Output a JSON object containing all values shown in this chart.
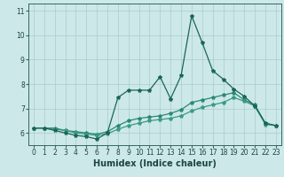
{
  "title": "",
  "xlabel": "Humidex (Indice chaleur)",
  "background_color": "#cde8e8",
  "grid_color": "#aacccc",
  "line_color1": "#1a6655",
  "line_color2": "#2a8877",
  "line_color3": "#3a9988",
  "xlim": [
    -0.5,
    23.5
  ],
  "ylim": [
    5.5,
    11.3
  ],
  "yticks": [
    6,
    7,
    8,
    9,
    10,
    11
  ],
  "xticks": [
    0,
    1,
    2,
    3,
    4,
    5,
    6,
    7,
    8,
    9,
    10,
    11,
    12,
    13,
    14,
    15,
    16,
    17,
    18,
    19,
    20,
    21,
    22,
    23
  ],
  "series1_x": [
    0,
    1,
    2,
    3,
    4,
    5,
    6,
    7,
    8,
    9,
    10,
    11,
    12,
    13,
    14,
    15,
    16,
    17,
    18,
    19,
    20,
    21,
    22,
    23
  ],
  "series1_y": [
    6.2,
    6.2,
    6.1,
    6.0,
    5.9,
    5.85,
    5.75,
    6.0,
    7.45,
    7.75,
    7.75,
    7.75,
    8.3,
    7.4,
    8.35,
    10.8,
    9.7,
    8.55,
    8.2,
    7.8,
    7.5,
    7.1,
    6.4,
    6.3
  ],
  "series2_x": [
    0,
    1,
    2,
    3,
    4,
    5,
    6,
    7,
    8,
    9,
    10,
    11,
    12,
    13,
    14,
    15,
    16,
    17,
    18,
    19,
    20,
    21,
    22,
    23
  ],
  "series2_y": [
    6.2,
    6.2,
    6.2,
    6.1,
    6.05,
    6.0,
    5.95,
    6.05,
    6.3,
    6.5,
    6.6,
    6.65,
    6.7,
    6.8,
    6.95,
    7.25,
    7.35,
    7.45,
    7.55,
    7.65,
    7.35,
    7.15,
    6.4,
    6.3
  ],
  "series3_x": [
    0,
    1,
    2,
    3,
    4,
    5,
    6,
    7,
    8,
    9,
    10,
    11,
    12,
    13,
    14,
    15,
    16,
    17,
    18,
    19,
    20,
    21,
    22,
    23
  ],
  "series3_y": [
    6.2,
    6.2,
    6.15,
    6.1,
    6.0,
    5.95,
    5.9,
    5.97,
    6.15,
    6.3,
    6.4,
    6.5,
    6.55,
    6.6,
    6.7,
    6.9,
    7.05,
    7.15,
    7.25,
    7.45,
    7.3,
    7.1,
    6.35,
    6.3
  ],
  "markersize": 3,
  "linewidth": 0.9,
  "tick_fontsize": 5.5,
  "xlabel_fontsize": 7.0
}
